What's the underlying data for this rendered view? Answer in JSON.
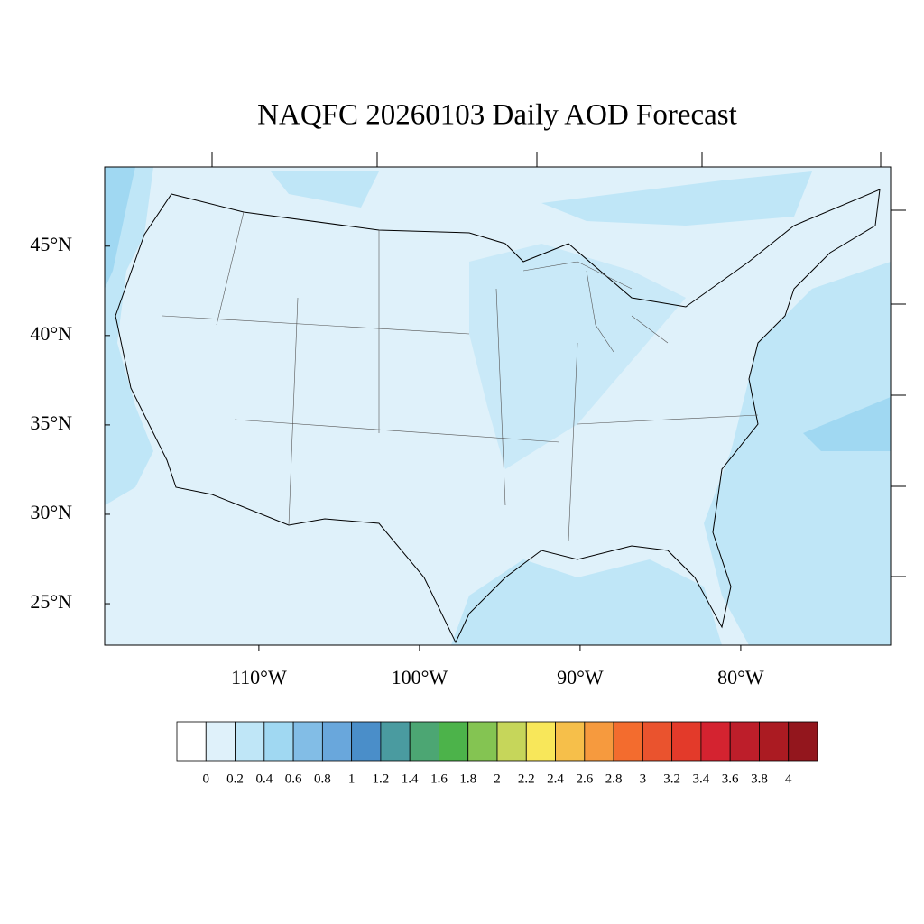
{
  "map": {
    "title": "NAQFC 20260103 Daily AOD Forecast",
    "latlim": [
      22.68,
      49.43
    ],
    "lonlim": [
      -119.6,
      -70.67
    ],
    "lat_ticks": [
      {
        "value": 45,
        "label": "45°N"
      },
      {
        "value": 40,
        "label": "40°N"
      },
      {
        "value": 35,
        "label": "35°N"
      },
      {
        "value": 30,
        "label": "30°N"
      },
      {
        "value": 25,
        "label": "25°N"
      }
    ],
    "lon_ticks": [
      {
        "value": -110,
        "label": "110°W"
      },
      {
        "value": -100,
        "label": "100°W"
      },
      {
        "value": -90,
        "label": "90°W"
      },
      {
        "value": -80,
        "label": "80°W"
      }
    ],
    "colorbar": {
      "levels": [
        0,
        0.2,
        0.4,
        0.6,
        0.8,
        1,
        1.2,
        1.4,
        1.6,
        1.8,
        2,
        2.2,
        2.4,
        2.6,
        2.8,
        3,
        3.2,
        3.4,
        3.6,
        3.8,
        4
      ],
      "colors": [
        "#ffffff",
        "#dff1fa",
        "#bfe6f7",
        "#a0d8f2",
        "#82bde6",
        "#69a7dc",
        "#4a8ec9",
        "#4a9ba0",
        "#4ca673",
        "#4cb34a",
        "#84c452",
        "#c6d65a",
        "#f8e75a",
        "#f6bf4a",
        "#f69a3e",
        "#f36c2e",
        "#ea532e",
        "#e33a2a",
        "#d42330",
        "#bd1e2a",
        "#ab1b22",
        "#93161d"
      ]
    }
  }
}
